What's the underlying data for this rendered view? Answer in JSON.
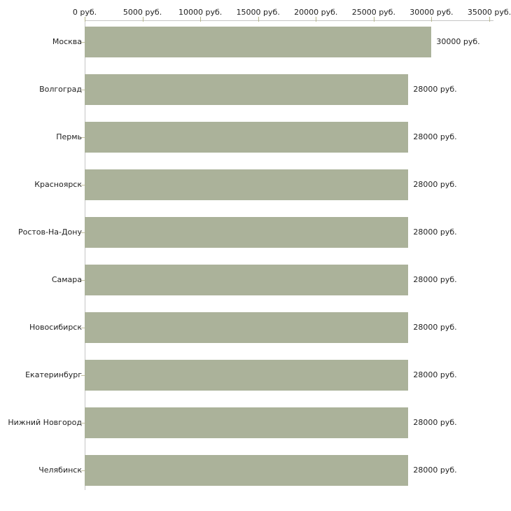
{
  "chart_data": {
    "type": "bar",
    "orientation": "horizontal",
    "title": "",
    "xlabel": "",
    "ylabel": "",
    "unit": "руб.",
    "categories": [
      "Москва",
      "Волгоград",
      "Пермь",
      "Красноярск",
      "Ростов-На-Дону",
      "Самара",
      "Новосибирск",
      "Екатеринбург",
      "Нижний Новгород",
      "Челябинск"
    ],
    "values": [
      30000,
      28000,
      28000,
      28000,
      28000,
      28000,
      28000,
      28000,
      28000,
      28000
    ],
    "value_labels": [
      "30000 руб.",
      "28000 руб.",
      "28000 руб.",
      "28000 руб.",
      "28000 руб.",
      "28000 руб.",
      "28000 руб.",
      "28000 руб.",
      "28000 руб.",
      "28000 руб."
    ],
    "xlim": [
      0,
      35000
    ],
    "x_tick_values": [
      0,
      5000,
      10000,
      15000,
      20000,
      25000,
      30000,
      35000
    ],
    "x_tick_labels": [
      "0 руб.",
      "5000 руб.",
      "10000 руб.",
      "15000 руб.",
      "20000 руб.",
      "25000 руб.",
      "30000 руб.",
      "35000 руб."
    ],
    "axis_position": "top",
    "grid": false,
    "legend": false,
    "colors": {
      "bar": "#abb29a",
      "axis_line": "#c6c6c6",
      "x_tick": "#b6b68c",
      "y_tick": "#c2bf9e",
      "text": "#222222",
      "background": "#ffffff"
    }
  }
}
